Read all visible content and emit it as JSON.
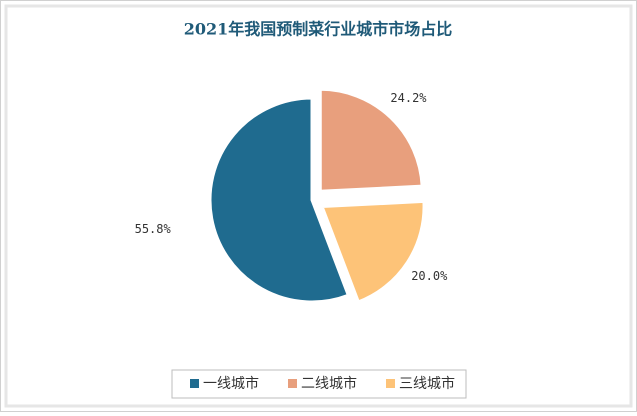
{
  "chart_data": {
    "type": "pie",
    "title": "2021年我国预制菜行业城市市场占比",
    "categories": [
      "一线城市",
      "二线城市",
      "三线城市"
    ],
    "values": [
      55.8,
      24.2,
      20.0
    ],
    "value_labels": [
      "55.8%",
      "24.2%",
      "20.0%"
    ],
    "colors": [
      "#1f6b8f",
      "#e89f7d",
      "#fdc378"
    ],
    "exploded": [
      false,
      true,
      true
    ],
    "legend": "bottom"
  }
}
